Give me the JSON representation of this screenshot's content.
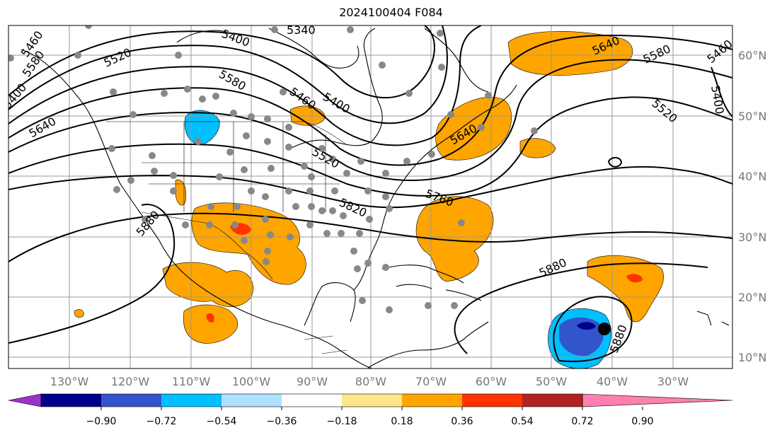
{
  "title": "2024100404 F084",
  "map": {
    "lon_labels": [
      "130°W",
      "120°W",
      "110°W",
      "100°W",
      "90°W",
      "80°W",
      "70°W",
      "60°W",
      "50°W",
      "40°W",
      "30°W"
    ],
    "lat_labels": [
      "60°N",
      "50°N",
      "40°N",
      "30°N",
      "20°N",
      "10°N"
    ],
    "contour_labels": [
      "5400",
      "5340",
      "5460",
      "5520",
      "5580",
      "5640",
      "5580",
      "5460",
      "5400",
      "5520",
      "5640",
      "5400",
      "5640",
      "5580",
      "5460",
      "5520",
      "5760",
      "5820",
      "5880",
      "5880",
      "5880",
      "5400"
    ]
  },
  "colorbar": {
    "colors": [
      "#9933cc",
      "#00008b",
      "#3355cc",
      "#00bfff",
      "#b0e0ff",
      "#ffffff",
      "#ffe68a",
      "#ffa500",
      "#ff3300",
      "#b22222",
      "#ff80b0"
    ],
    "tick_labels": [
      "−0.90",
      "−0.72",
      "−0.54",
      "−0.36",
      "−0.18",
      "0.18",
      "0.36",
      "0.54",
      "0.72",
      "0.90"
    ]
  }
}
